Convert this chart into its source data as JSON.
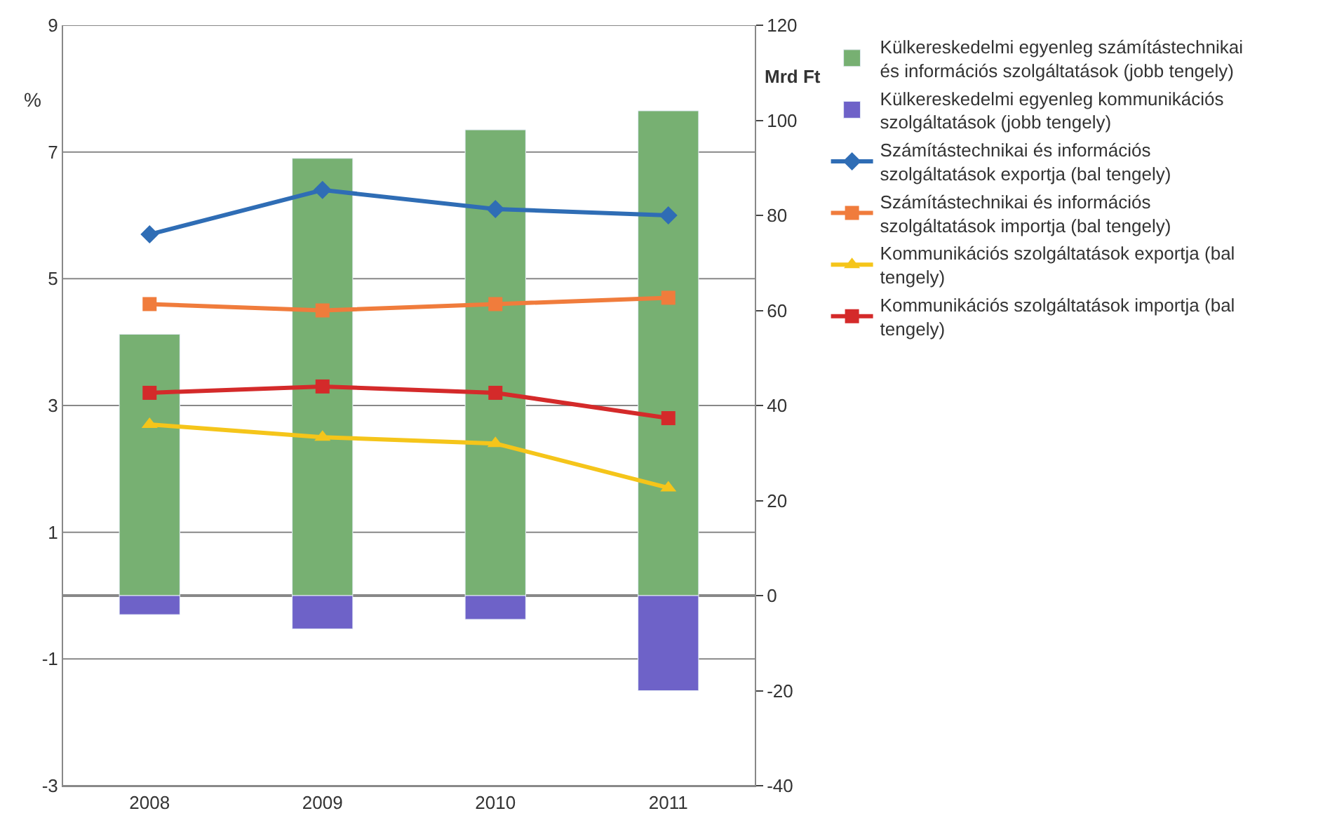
{
  "chart_data": {
    "type": "bar",
    "ylabel": "%",
    "y2label": "Mrd Ft",
    "categories": [
      "2008",
      "2009",
      "2010",
      "2011"
    ],
    "series": [
      {
        "name": "Külkereskedelmi egyenleg számítástechnikai és információs szolgáltatások (jobb tengely)",
        "color": "#77b072",
        "axis": "y2",
        "values": [
          55,
          92,
          98,
          102
        ]
      },
      {
        "name": "Külkereskedelmi egyenleg kommunikációs szolgáltatások (jobb tengely)",
        "color": "#6e62c8",
        "axis": "y2",
        "values": [
          -4,
          -7,
          -5,
          -20
        ]
      },
      {
        "name": "Számítástechnikai és információs szolgáltatások exportja (bal tengely)",
        "color": "#2f6db5",
        "type": "line",
        "marker": "diamond",
        "values": [
          5.7,
          6.4,
          6.1,
          6.0
        ]
      },
      {
        "name": "Számítástechnikai és információs szolgáltatások importja (bal tengely)",
        "color": "#f07c3c",
        "type": "line",
        "marker": "square",
        "values": [
          4.6,
          4.5,
          4.6,
          4.7
        ]
      },
      {
        "name": "Kommunikációs szolgáltatások exportja (bal tengely)",
        "color": "#f5c51a",
        "type": "line",
        "marker": "triangle",
        "values": [
          2.7,
          2.5,
          2.4,
          1.7
        ]
      },
      {
        "name": "Kommunikációs szolgáltatások importja (bal tengely)",
        "color": "#d42a2a",
        "type": "line",
        "marker": "square",
        "values": [
          3.2,
          3.3,
          3.2,
          2.8
        ]
      }
    ],
    "ylim": [
      -3,
      9
    ],
    "yticks": [
      -3,
      -1,
      1,
      3,
      5,
      7,
      9
    ],
    "y2lim": [
      -40,
      120
    ],
    "y2ticks": [
      -40,
      -20,
      0,
      20,
      40,
      60,
      80,
      100,
      120
    ],
    "stacked": true,
    "grid": "y",
    "legend": "right"
  }
}
